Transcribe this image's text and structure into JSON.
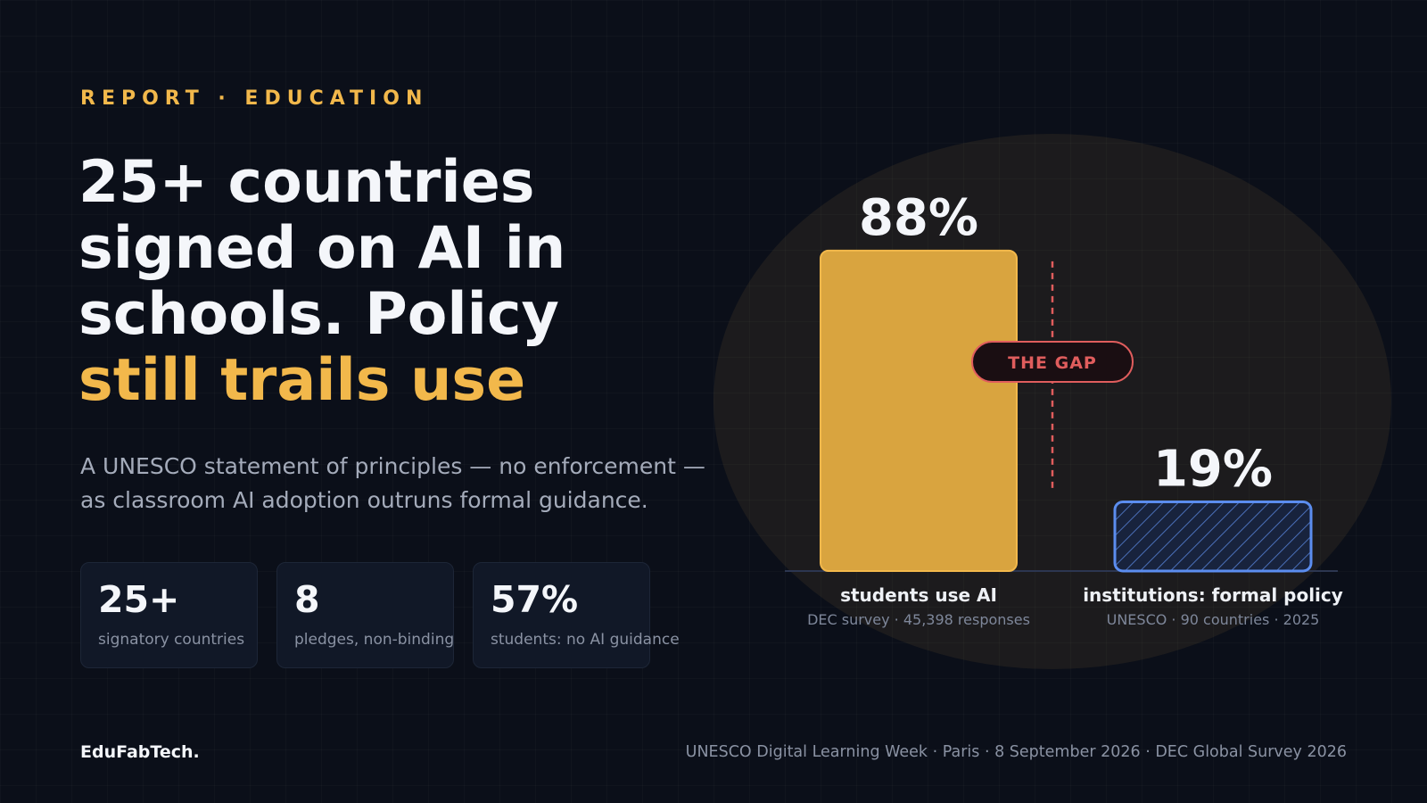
{
  "eyebrow": "REPORT · EDUCATION",
  "headline": {
    "line1": "25+ countries",
    "line2": "signed on AI in",
    "line3": "schools. Policy",
    "accent_line": "still trails use"
  },
  "subtitle": {
    "line1": "A UNESCO statement of principles — no enforcement —",
    "line2": "as classroom AI adoption outruns formal guidance."
  },
  "stats": [
    {
      "value": "25+",
      "label": "signatory countries"
    },
    {
      "value": "8",
      "label": "pledges, non-binding"
    },
    {
      "value": "57%",
      "label": "students: no AI guidance"
    }
  ],
  "chart_data": {
    "type": "bar",
    "categories": [
      "students use AI",
      "institutions: formal policy"
    ],
    "values": [
      88,
      19
    ],
    "value_labels": [
      "88%",
      "19%"
    ],
    "sources": [
      "DEC survey · 45,398 responses",
      "UNESCO · 90 countries · 2025"
    ],
    "annotation": "THE GAP",
    "ylim": [
      0,
      100
    ],
    "grid": false,
    "colors": {
      "students": "#d9a43f",
      "students_border": "#f2b84b",
      "institutions_hatch": "#5b8def",
      "gap": "#e05d5d"
    }
  },
  "footer": {
    "brand": "EduFabTech.",
    "source": "UNESCO Digital Learning Week · Paris · 8 September 2026 · DEC Global Survey 2026"
  }
}
